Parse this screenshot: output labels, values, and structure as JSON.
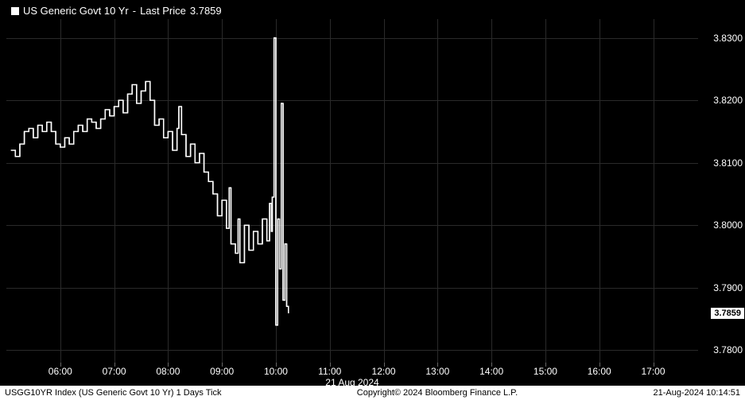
{
  "legend": {
    "series_name": "US Generic Govt 10 Yr",
    "last_label": "Last Price",
    "last_value": "3.7859"
  },
  "chart": {
    "type": "line",
    "background_color": "#000000",
    "line_color": "#ffffff",
    "grid_color": "#2a2a2a",
    "text_color": "#ffffff",
    "ylim": [
      3.778,
      3.833
    ],
    "yticks": [
      3.78,
      3.79,
      3.8,
      3.81,
      3.82,
      3.83
    ],
    "ytick_labels": [
      "3.7800",
      "3.7900",
      "3.8000",
      "3.8100",
      "3.8200",
      "3.8300"
    ],
    "xlim_minutes": [
      300,
      1070
    ],
    "xticks_minutes": [
      360,
      420,
      480,
      540,
      600,
      660,
      720,
      780,
      840,
      900,
      960,
      1020
    ],
    "xtick_labels": [
      "06:00",
      "07:00",
      "08:00",
      "09:00",
      "10:00",
      "11:00",
      "12:00",
      "13:00",
      "14:00",
      "15:00",
      "16:00",
      "17:00"
    ],
    "date_label": "21 Aug 2024",
    "current_price": 3.7859,
    "current_price_label": "3.7859",
    "series": [
      [
        305,
        3.812
      ],
      [
        310,
        3.811
      ],
      [
        315,
        3.813
      ],
      [
        320,
        3.815
      ],
      [
        325,
        3.8155
      ],
      [
        330,
        3.814
      ],
      [
        335,
        3.816
      ],
      [
        340,
        3.815
      ],
      [
        345,
        3.8165
      ],
      [
        350,
        3.815
      ],
      [
        355,
        3.813
      ],
      [
        360,
        3.8125
      ],
      [
        365,
        3.814
      ],
      [
        370,
        3.813
      ],
      [
        375,
        3.815
      ],
      [
        380,
        3.816
      ],
      [
        385,
        3.815
      ],
      [
        390,
        3.817
      ],
      [
        395,
        3.8165
      ],
      [
        400,
        3.8155
      ],
      [
        405,
        3.817
      ],
      [
        410,
        3.8185
      ],
      [
        415,
        3.8175
      ],
      [
        420,
        3.819
      ],
      [
        425,
        3.82
      ],
      [
        430,
        3.818
      ],
      [
        435,
        3.821
      ],
      [
        440,
        3.8225
      ],
      [
        445,
        3.8195
      ],
      [
        450,
        3.8215
      ],
      [
        455,
        3.823
      ],
      [
        460,
        3.82
      ],
      [
        465,
        3.816
      ],
      [
        470,
        3.817
      ],
      [
        475,
        3.814
      ],
      [
        480,
        3.815
      ],
      [
        485,
        3.812
      ],
      [
        490,
        3.8155
      ],
      [
        492,
        3.819
      ],
      [
        495,
        3.8145
      ],
      [
        500,
        3.811
      ],
      [
        505,
        3.813
      ],
      [
        510,
        3.81
      ],
      [
        515,
        3.8115
      ],
      [
        520,
        3.8085
      ],
      [
        525,
        3.807
      ],
      [
        530,
        3.805
      ],
      [
        535,
        3.8015
      ],
      [
        540,
        3.804
      ],
      [
        545,
        3.7995
      ],
      [
        548,
        3.806
      ],
      [
        550,
        3.797
      ],
      [
        555,
        3.7955
      ],
      [
        558,
        3.801
      ],
      [
        560,
        3.794
      ],
      [
        565,
        3.8
      ],
      [
        570,
        3.796
      ],
      [
        575,
        3.799
      ],
      [
        580,
        3.797
      ],
      [
        585,
        3.801
      ],
      [
        590,
        3.7975
      ],
      [
        593,
        3.8035
      ],
      [
        595,
        3.799
      ],
      [
        596,
        3.8045
      ],
      [
        598,
        3.83
      ],
      [
        600,
        3.784
      ],
      [
        602,
        3.801
      ],
      [
        604,
        3.793
      ],
      [
        606,
        3.8195
      ],
      [
        608,
        3.788
      ],
      [
        610,
        3.797
      ],
      [
        612,
        3.787
      ],
      [
        614,
        3.7859
      ]
    ]
  },
  "footer": {
    "left": "USGG10YR Index (US Generic Govt 10 Yr) 1 Days  Tick",
    "center": "Copyright© 2024 Bloomberg Finance L.P.",
    "right": "21-Aug-2024 10:14:51"
  }
}
